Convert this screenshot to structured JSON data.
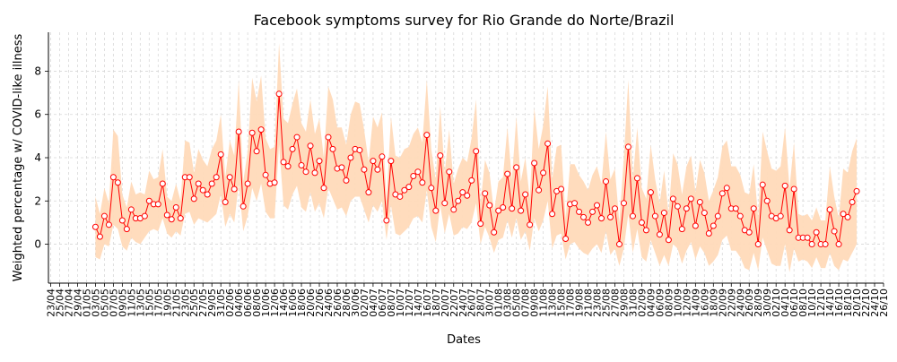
{
  "chart_data": {
    "type": "line",
    "title": "Facebook symptoms survey for Rio Grande do Norte/Brazil",
    "xlabel": "Dates",
    "ylabel": "Weighted percentage w/ COVID-like illness",
    "yticks": [
      0,
      2,
      4,
      6,
      8
    ],
    "ylim": [
      -1.8,
      9.8
    ],
    "xlim": [
      -0.5,
      186
    ],
    "grid": true,
    "x_tick_step_days": 2,
    "x_tick_labels": [
      "23/04",
      "25/04",
      "27/04",
      "29/04",
      "01/05",
      "03/05",
      "05/05",
      "07/05",
      "09/05",
      "11/05",
      "13/05",
      "15/05",
      "17/05",
      "19/05",
      "21/05",
      "23/05",
      "25/05",
      "27/05",
      "29/05",
      "31/05",
      "02/06",
      "04/06",
      "06/06",
      "08/06",
      "10/06",
      "12/06",
      "14/06",
      "16/06",
      "18/06",
      "20/06",
      "22/06",
      "24/06",
      "26/06",
      "28/06",
      "30/06",
      "02/07",
      "04/07",
      "06/07",
      "08/07",
      "10/07",
      "12/07",
      "14/07",
      "16/07",
      "18/07",
      "20/07",
      "22/07",
      "24/07",
      "26/07",
      "28/07",
      "30/07",
      "01/08",
      "03/08",
      "05/08",
      "07/08",
      "09/08",
      "11/08",
      "13/08",
      "15/08",
      "17/08",
      "19/08",
      "21/08",
      "23/08",
      "25/08",
      "27/08",
      "29/08",
      "31/08",
      "02/09",
      "04/09",
      "06/09",
      "08/09",
      "10/09",
      "12/09",
      "14/09",
      "16/09",
      "18/09",
      "20/09",
      "22/09",
      "24/09",
      "26/09",
      "28/09",
      "30/09",
      "02/10",
      "04/10",
      "06/10",
      "08/10",
      "10/10",
      "12/10",
      "14/10",
      "16/10",
      "18/10",
      "20/10",
      "22/10",
      "24/10",
      "26/10"
    ],
    "series": [
      {
        "color": "#ff0000",
        "band_color": "#ffdab9",
        "start_date": "23/04",
        "values": [
          0.8,
          0.35,
          1.3,
          0.9,
          3.1,
          2.85,
          1.1,
          0.7,
          1.6,
          1.2,
          1.2,
          1.3,
          2.0,
          1.85,
          1.85,
          2.8,
          1.35,
          1.15,
          1.7,
          1.2,
          3.1,
          3.1,
          2.1,
          2.8,
          2.5,
          2.3,
          2.8,
          3.1,
          4.15,
          1.95,
          3.1,
          2.55,
          5.2,
          1.75,
          2.8,
          5.15,
          4.3,
          5.3,
          3.2,
          2.8,
          2.85,
          6.95,
          3.8,
          3.6,
          4.4,
          4.95,
          3.65,
          3.35,
          4.55,
          3.3,
          3.85,
          2.6,
          4.95,
          4.4,
          3.5,
          3.55,
          2.95,
          4.0,
          4.4,
          4.35,
          3.45,
          2.4,
          3.85,
          3.45,
          4.05,
          1.1,
          3.85,
          2.3,
          2.2,
          2.5,
          2.65,
          3.15,
          3.35,
          2.85,
          5.05,
          2.6,
          1.55,
          4.1,
          1.9,
          3.35,
          1.6,
          2.0,
          2.4,
          2.25,
          2.95,
          4.3,
          0.95,
          2.35,
          1.8,
          0.55,
          1.55,
          1.7,
          3.25,
          1.65,
          3.55,
          1.55,
          2.3,
          0.9,
          3.75,
          2.5,
          3.3,
          4.65,
          1.4,
          2.45,
          2.55,
          0.25,
          1.85,
          1.9,
          1.5,
          1.25,
          1.0,
          1.5,
          1.8,
          1.2,
          2.9,
          1.25,
          1.65,
          0.0,
          1.9,
          4.5,
          1.3,
          3.05,
          1.0,
          0.65,
          2.4,
          1.3,
          0.45,
          1.45,
          0.2,
          2.1,
          1.75,
          0.7,
          1.65,
          2.1,
          0.85,
          1.95,
          1.45,
          0.5,
          0.85,
          1.3,
          2.35,
          2.6,
          1.65,
          1.65,
          1.3,
          0.65,
          0.55,
          1.65,
          0.0,
          2.75,
          2.0,
          1.3,
          1.2,
          1.3,
          2.7,
          0.65,
          2.55,
          0.3,
          0.3,
          0.3,
          0.0,
          0.55,
          0.0,
          0.0,
          1.6,
          0.6,
          0.0,
          1.4,
          1.25,
          1.95,
          2.45
        ],
        "lower": [
          -0.6,
          -0.7,
          0.0,
          -0.1,
          0.9,
          0.7,
          -0.1,
          -0.3,
          0.3,
          0.1,
          0.0,
          0.3,
          0.6,
          0.7,
          0.6,
          1.2,
          0.5,
          0.3,
          0.6,
          0.4,
          1.4,
          1.5,
          0.9,
          1.2,
          1.1,
          1.0,
          1.2,
          1.4,
          2.3,
          0.8,
          1.4,
          1.0,
          2.8,
          0.6,
          1.3,
          2.6,
          2.0,
          2.8,
          1.5,
          1.2,
          1.2,
          4.6,
          1.8,
          1.6,
          2.3,
          2.7,
          1.7,
          1.5,
          2.4,
          1.5,
          1.9,
          1.2,
          2.6,
          2.1,
          1.6,
          1.7,
          1.3,
          2.0,
          2.2,
          2.2,
          1.6,
          1.0,
          1.8,
          1.5,
          2.0,
          0.2,
          1.8,
          0.5,
          0.4,
          0.6,
          0.8,
          1.2,
          1.3,
          1.0,
          2.5,
          0.8,
          0.1,
          1.8,
          0.5,
          1.4,
          0.4,
          0.5,
          0.8,
          0.7,
          1.0,
          1.9,
          0.0,
          0.8,
          0.3,
          -0.4,
          0.2,
          0.3,
          1.1,
          0.3,
          1.2,
          0.2,
          0.6,
          -0.3,
          1.2,
          0.6,
          1.1,
          2.0,
          -0.2,
          0.4,
          0.5,
          -0.7,
          0.0,
          0.1,
          -0.2,
          -0.4,
          -0.5,
          -0.2,
          0.0,
          -0.4,
          0.6,
          -0.5,
          -0.2,
          -1.0,
          -0.2,
          1.4,
          -0.4,
          0.7,
          -0.6,
          -0.8,
          0.2,
          -0.4,
          -1.0,
          -0.5,
          -1.0,
          0.0,
          -0.2,
          -0.9,
          -0.3,
          0.1,
          -0.7,
          -0.1,
          -0.4,
          -1.0,
          -0.8,
          -0.5,
          0.2,
          0.4,
          -0.3,
          -0.3,
          -0.6,
          -1.1,
          -1.2,
          -0.4,
          -1.2,
          0.3,
          -0.3,
          -0.9,
          -1.0,
          -1.0,
          0.0,
          -1.3,
          -0.2,
          -0.8,
          -0.7,
          -0.8,
          -1.1,
          -0.6,
          -1.1,
          -1.1,
          -0.4,
          -1.0,
          -1.2,
          -0.7,
          -0.8,
          -0.4,
          0.0
        ],
        "upper": [
          2.2,
          1.4,
          2.6,
          1.9,
          5.3,
          5.0,
          2.3,
          1.7,
          2.9,
          2.3,
          2.4,
          2.3,
          3.4,
          3.0,
          3.1,
          4.4,
          2.2,
          2.0,
          2.8,
          2.0,
          4.8,
          4.7,
          3.3,
          4.4,
          3.9,
          3.6,
          4.4,
          4.8,
          6.0,
          3.1,
          4.8,
          4.1,
          7.6,
          2.9,
          4.3,
          7.7,
          6.6,
          7.8,
          4.9,
          4.4,
          4.5,
          9.3,
          5.8,
          5.6,
          6.5,
          7.2,
          5.6,
          5.2,
          6.7,
          5.1,
          5.8,
          4.0,
          7.3,
          6.7,
          5.4,
          5.4,
          4.6,
          6.0,
          6.6,
          6.5,
          5.3,
          3.8,
          5.9,
          5.4,
          6.1,
          2.0,
          5.9,
          4.1,
          4.0,
          4.4,
          4.5,
          5.1,
          5.4,
          4.7,
          7.6,
          4.4,
          3.0,
          6.4,
          3.3,
          5.3,
          2.8,
          3.5,
          4.0,
          3.8,
          4.9,
          6.7,
          1.9,
          3.9,
          3.3,
          1.5,
          2.9,
          3.1,
          5.4,
          3.0,
          5.9,
          2.9,
          4.0,
          2.1,
          6.3,
          4.4,
          5.5,
          7.3,
          3.0,
          4.5,
          4.6,
          1.2,
          3.7,
          3.7,
          3.2,
          2.9,
          2.5,
          3.2,
          3.6,
          2.8,
          5.2,
          3.0,
          3.5,
          1.0,
          4.0,
          7.6,
          3.0,
          5.4,
          2.6,
          2.1,
          4.6,
          3.0,
          1.9,
          3.4,
          1.4,
          4.2,
          3.7,
          2.3,
          3.6,
          4.1,
          2.4,
          3.9,
          3.3,
          2.0,
          2.5,
          3.1,
          4.5,
          4.8,
          3.6,
          3.6,
          3.2,
          2.4,
          2.3,
          3.7,
          1.2,
          5.2,
          4.3,
          3.5,
          3.4,
          3.6,
          5.4,
          2.6,
          4.7,
          1.4,
          1.3,
          1.4,
          1.1,
          1.7,
          1.1,
          1.1,
          3.6,
          2.2,
          1.2,
          3.5,
          3.3,
          4.3,
          4.9
        ]
      }
    ]
  }
}
